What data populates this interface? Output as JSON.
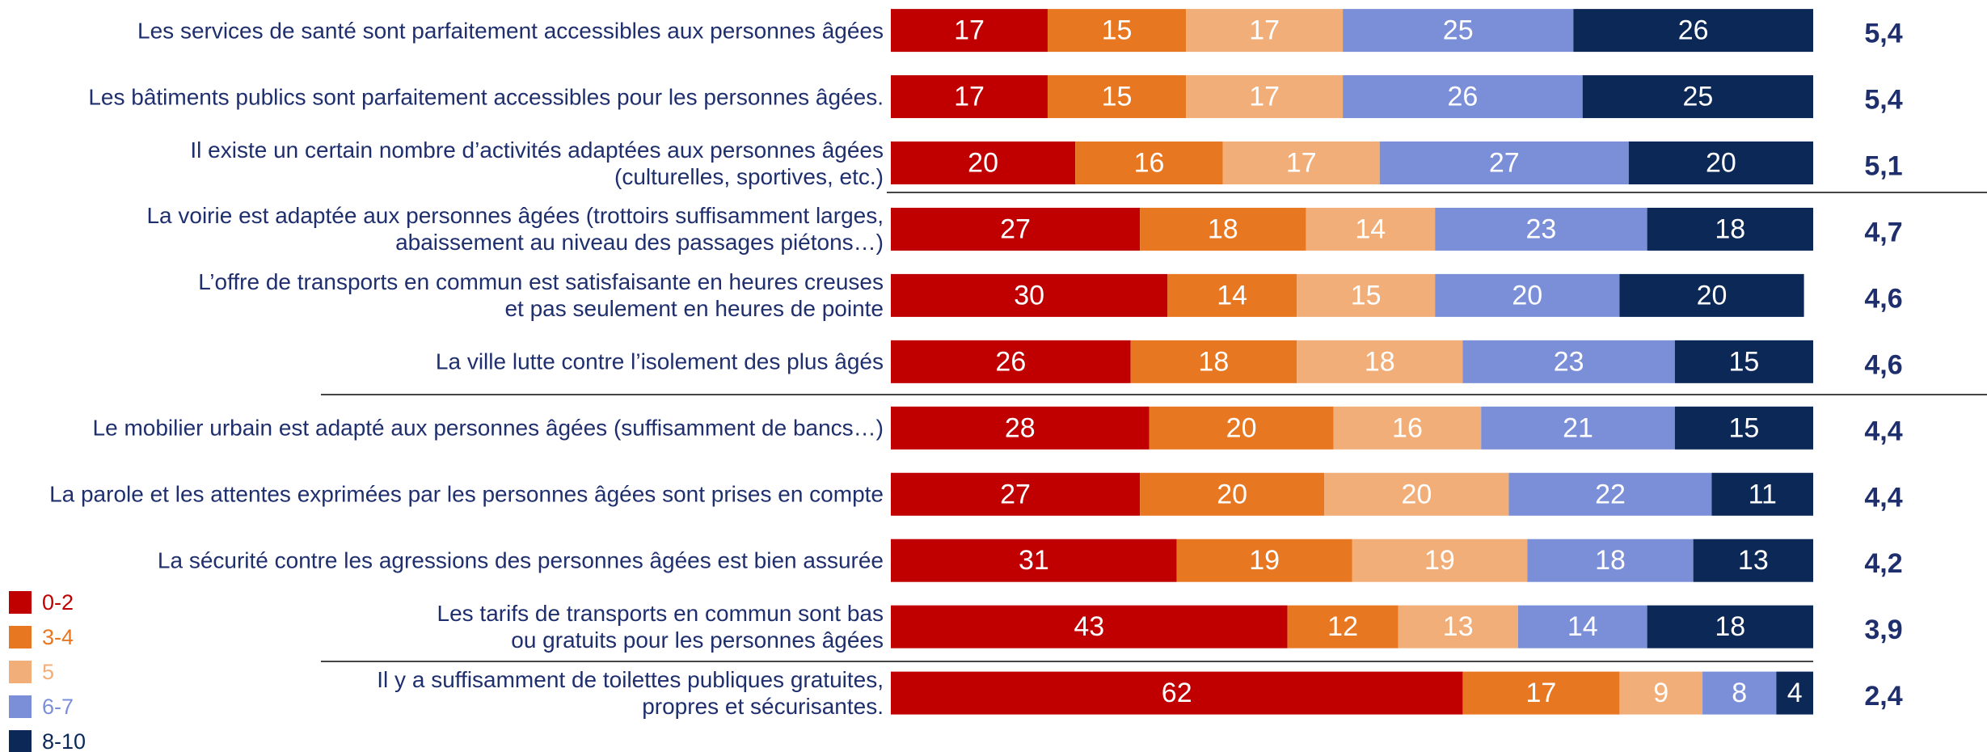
{
  "chart_data": {
    "type": "stacked_bar_horizontal",
    "categories": [
      "Les services de santé sont parfaitement accessibles aux personnes âgées",
      "Les bâtiments publics sont parfaitement accessibles pour les personnes âgées.",
      "Il existe un certain nombre d’activités adaptées aux personnes âgées\n(culturelles, sportives, etc.)",
      "La voirie est adaptée aux personnes âgées (trottoirs suffisamment larges,\nabaissement au niveau des passages piétons…)",
      "L’offre de transports en commun est satisfaisante en heures creuses\net pas seulement en heures de pointe",
      "La ville lutte contre l’isolement des plus âgés",
      "Le mobilier urbain est adapté aux personnes âgées (suffisamment de bancs…)",
      "La parole et les attentes exprimées par les personnes âgées sont prises en compte",
      "La sécurité contre les agressions des personnes âgées est bien assurée",
      "Les tarifs de transports en commun sont bas\nou gratuits pour les personnes âgées",
      "Il y a suffisamment de toilettes publiques gratuites,\npropres et sécurisantes."
    ],
    "series": [
      {
        "name": "0-2",
        "color": "#c00000",
        "values": [
          17,
          17,
          20,
          27,
          30,
          26,
          28,
          27,
          31,
          43,
          62
        ]
      },
      {
        "name": "3-4",
        "color": "#e87722",
        "values": [
          15,
          15,
          16,
          18,
          14,
          18,
          20,
          20,
          19,
          12,
          17
        ]
      },
      {
        "name": "5",
        "color": "#f2ae78",
        "values": [
          17,
          17,
          17,
          14,
          15,
          18,
          16,
          20,
          19,
          13,
          9
        ]
      },
      {
        "name": "6-7",
        "color": "#7a8fd8",
        "values": [
          25,
          26,
          27,
          23,
          20,
          23,
          21,
          22,
          18,
          14,
          8
        ]
      },
      {
        "name": "8-10",
        "color": "#0b2857",
        "values": [
          26,
          25,
          20,
          18,
          20,
          15,
          15,
          11,
          13,
          18,
          4
        ]
      }
    ],
    "averages": {
      "values": [
        5.4,
        5.4,
        5.1,
        4.7,
        4.6,
        4.6,
        4.4,
        4.4,
        4.2,
        3.9,
        2.4
      ],
      "value_labels": [
        "5,4",
        "5,4",
        "5,1",
        "4,7",
        "4,6",
        "4,6",
        "4,4",
        "4,4",
        "4,2",
        "3,9",
        "2,4"
      ]
    },
    "xlim": [
      0,
      100
    ]
  }
}
